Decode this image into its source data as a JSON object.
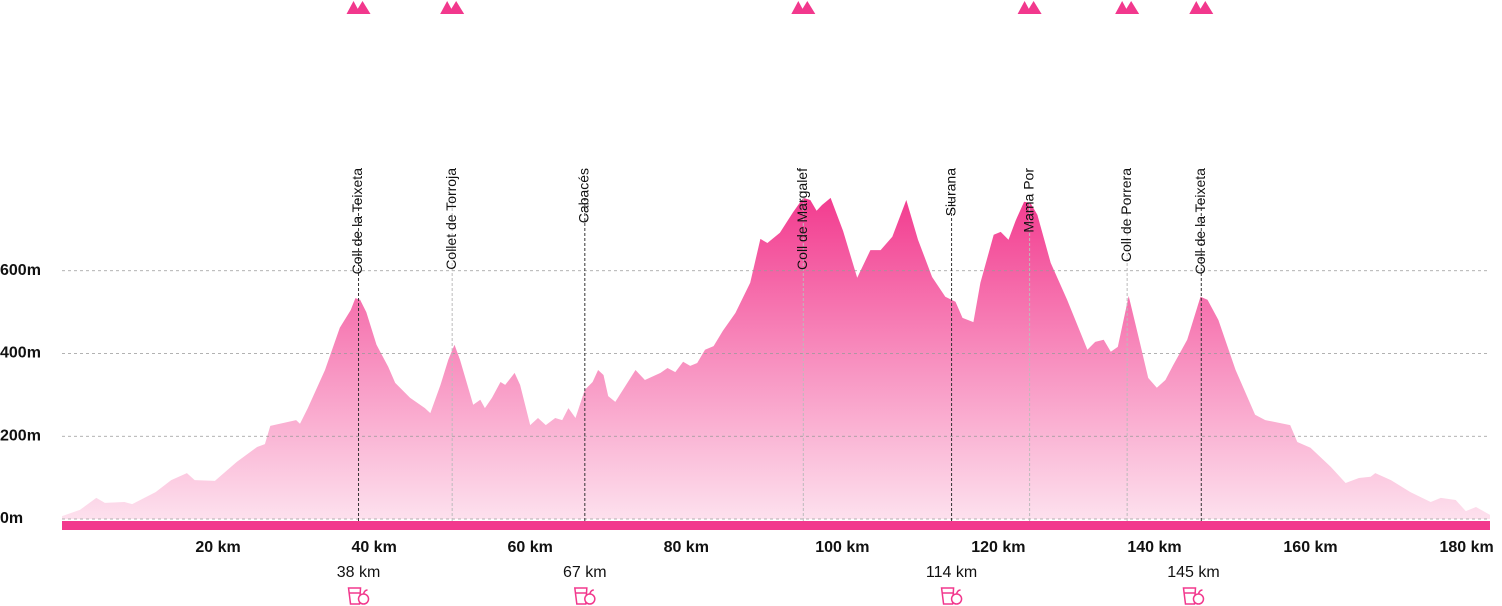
{
  "chart_data": {
    "type": "area",
    "x": [
      0,
      2.3,
      4.4,
      5.5,
      8,
      9,
      12,
      14,
      16,
      17,
      19.6,
      22.4,
      25,
      26,
      26.7,
      30,
      30.5,
      31.5,
      33.7,
      35.6,
      37,
      37.6,
      38.2,
      39,
      40.3,
      41.8,
      42.7,
      44.6,
      46.5,
      47.2,
      48.5,
      49.5,
      50.3,
      51,
      52.7,
      53.6,
      54.2,
      55.1,
      56.2,
      56.8,
      58,
      58.7,
      60,
      61,
      62,
      63.2,
      64.1,
      64.9,
      65.8,
      67,
      68,
      68.7,
      69.4,
      70,
      70.9,
      73.5,
      74.7,
      76.7,
      77.6,
      78.6,
      79.6,
      80.5,
      81.4,
      82.4,
      83.5,
      84.7,
      86.3,
      88.2,
      89.5,
      90.4,
      92,
      93.7,
      95,
      95.9,
      96.7,
      97.4,
      98.5,
      100.1,
      101.9,
      103.6,
      104.9,
      106.4,
      108.2,
      109.7,
      111.5,
      113.2,
      114.5,
      115.4,
      116.8,
      117.7,
      119.4,
      120.3,
      121.3,
      122.2,
      123.3,
      124.1,
      125,
      126.7,
      128.8,
      131.4,
      132.4,
      133.5,
      134.4,
      135.3,
      136.7,
      138.2,
      139.2,
      140.3,
      141.4,
      142.4,
      144.2,
      145.9,
      146.8,
      148.2,
      150.4,
      152.9,
      154.2,
      157.4,
      158.3,
      160,
      162.6,
      164.5,
      166.2,
      167.7,
      168.3,
      170.3,
      172.8,
      175.4,
      176.7,
      178.6,
      179.9,
      181.2,
      183
    ],
    "values": [
      7,
      22,
      51,
      39,
      41,
      36,
      65,
      94,
      111,
      94,
      92,
      138,
      174,
      181,
      225,
      239,
      230,
      268,
      360,
      462,
      505,
      534,
      530,
      500,
      421,
      368,
      329,
      293,
      268,
      256,
      324,
      385,
      421,
      385,
      276,
      288,
      268,
      293,
      331,
      324,
      353,
      324,
      227,
      244,
      227,
      244,
      239,
      268,
      244,
      312,
      331,
      360,
      348,
      297,
      283,
      360,
      336,
      353,
      365,
      355,
      380,
      370,
      377,
      409,
      418,
      455,
      498,
      571,
      677,
      667,
      692,
      742,
      776,
      771,
      745,
      759,
      776,
      696,
      583,
      650,
      650,
      682,
      771,
      675,
      585,
      537,
      525,
      486,
      476,
      571,
      687,
      694,
      675,
      721,
      767,
      764,
      735,
      619,
      530,
      409,
      428,
      433,
      404,
      416,
      539,
      421,
      341,
      317,
      336,
      372,
      433,
      537,
      530,
      481,
      360,
      252,
      239,
      227,
      186,
      172,
      126,
      87,
      99,
      102,
      111,
      94,
      65,
      41,
      51,
      46,
      19,
      29,
      10
    ],
    "color": "#f2388d",
    "xlim": [
      0,
      183
    ],
    "ylim": [
      0,
      800
    ],
    "xticks": [
      {
        "value": 20,
        "label": "20 km"
      },
      {
        "value": 40,
        "label": "40 km"
      },
      {
        "value": 60,
        "label": "60 km"
      },
      {
        "value": 80,
        "label": "80 km"
      },
      {
        "value": 100,
        "label": "100 km"
      },
      {
        "value": 120,
        "label": "120 km"
      },
      {
        "value": 140,
        "label": "140 km"
      },
      {
        "value": 160,
        "label": "160 km"
      },
      {
        "value": 180,
        "label": "180 km"
      }
    ],
    "yticks": [
      {
        "value": 0,
        "label": "0m"
      },
      {
        "value": 200,
        "label": "200m"
      },
      {
        "value": 400,
        "label": "400m"
      },
      {
        "value": 600,
        "label": "600m"
      }
    ],
    "grid": true,
    "waypoints": [
      {
        "name": "Coll de la Teixeta",
        "km": 38,
        "summit": true
      },
      {
        "name": "Collet de Torroja",
        "km": 50,
        "summit": true
      },
      {
        "name": "Cabacés",
        "km": 67,
        "summit": false
      },
      {
        "name": "Coll de Margalef",
        "km": 95,
        "summit": true
      },
      {
        "name": "Siurana",
        "km": 114,
        "summit": false
      },
      {
        "name": "Mama Por",
        "km": 124,
        "summit": true
      },
      {
        "name": "Coll de Porrera",
        "km": 136.5,
        "summit": true
      },
      {
        "name": "Coll de la Teixeta",
        "km": 146,
        "summit": true
      }
    ],
    "aid_stations": [
      {
        "value": 38,
        "label": "38 km"
      },
      {
        "value": 67,
        "label": "67 km"
      },
      {
        "value": 114,
        "label": "114 km"
      },
      {
        "value": 145,
        "label": "145 km"
      }
    ]
  }
}
